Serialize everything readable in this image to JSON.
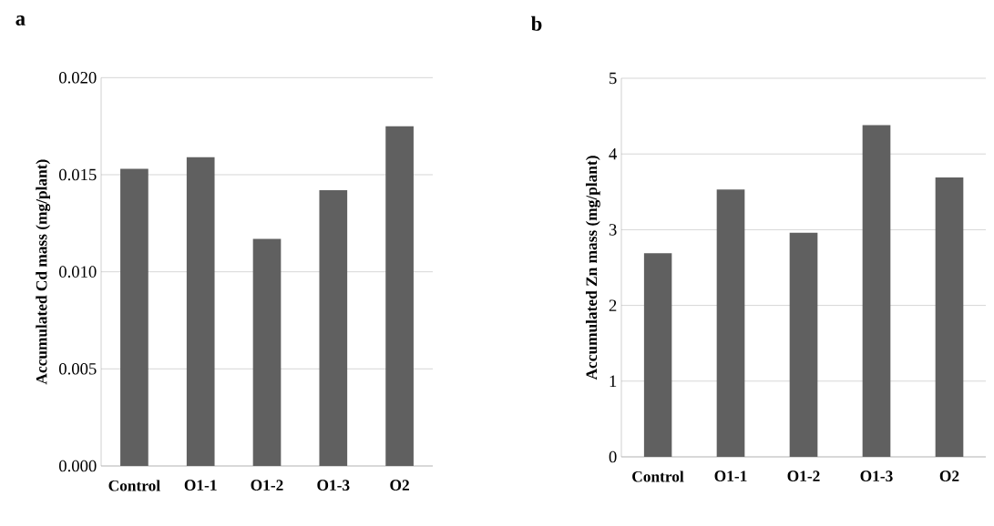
{
  "chart_data": [
    {
      "type": "bar",
      "title": "a",
      "ylabel": "Accumulated Cd mass (mg/plant)",
      "categories": [
        "Control",
        "O1-1",
        "O1-2",
        "O1-3",
        "O2"
      ],
      "values": [
        0.0153,
        0.0159,
        0.0117,
        0.0142,
        0.0175
      ],
      "color": "#606060",
      "ylim": [
        0,
        0.02
      ],
      "yticks": [
        {
          "value": 0,
          "label": "0.000"
        },
        {
          "value": 0.005,
          "label": "0.005"
        },
        {
          "value": 0.01,
          "label": "0.010"
        },
        {
          "value": 0.015,
          "label": "0.015"
        },
        {
          "value": 0.02,
          "label": "0.020"
        }
      ],
      "grid": "y"
    },
    {
      "type": "bar",
      "title": "b",
      "ylabel": "Accumulated Zn mass (mg/plant)",
      "categories": [
        "Control",
        "O1-1",
        "O1-2",
        "O1-3",
        "O2"
      ],
      "values": [
        2.69,
        3.53,
        2.96,
        4.38,
        3.69
      ],
      "color": "#606060",
      "ylim": [
        0,
        5
      ],
      "yticks": [
        0,
        1,
        2,
        3,
        4,
        5
      ],
      "grid": "y"
    }
  ]
}
